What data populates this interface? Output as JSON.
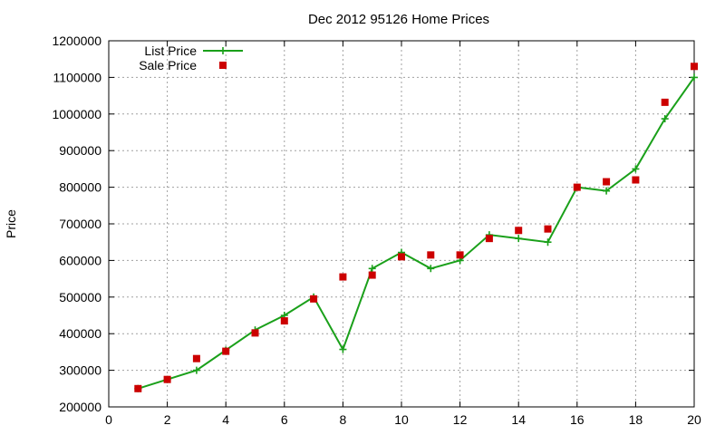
{
  "chart_data": {
    "type": "line",
    "title": "Dec 2012 95126 Home Prices",
    "xlabel": "",
    "ylabel": "Price",
    "xlim": [
      0,
      20
    ],
    "ylim": [
      200000,
      1200000
    ],
    "xticks": [
      0,
      2,
      4,
      6,
      8,
      10,
      12,
      14,
      16,
      18,
      20
    ],
    "yticks": [
      200000,
      300000,
      400000,
      500000,
      600000,
      700000,
      800000,
      900000,
      1000000,
      1100000,
      1200000
    ],
    "grid": true,
    "legend_position": "top-left",
    "x": [
      1,
      2,
      3,
      4,
      5,
      6,
      7,
      8,
      9,
      10,
      11,
      12,
      13,
      14,
      15,
      16,
      17,
      18,
      19,
      20
    ],
    "series": [
      {
        "name": "List Price",
        "style": "line-plus",
        "color": "#1aa01a",
        "values": [
          250000,
          275000,
          300000,
          355000,
          410000,
          450000,
          500000,
          357000,
          578000,
          622000,
          578000,
          600000,
          670000,
          660000,
          650000,
          800000,
          790000,
          850000,
          987000,
          1100000
        ]
      },
      {
        "name": "Sale Price",
        "style": "square",
        "color": "#cc0000",
        "values": [
          250000,
          275000,
          332000,
          352000,
          402000,
          435000,
          495000,
          555000,
          560000,
          610000,
          615000,
          615000,
          660000,
          682000,
          686000,
          800000,
          815000,
          820000,
          1032000,
          1130000
        ]
      }
    ]
  }
}
